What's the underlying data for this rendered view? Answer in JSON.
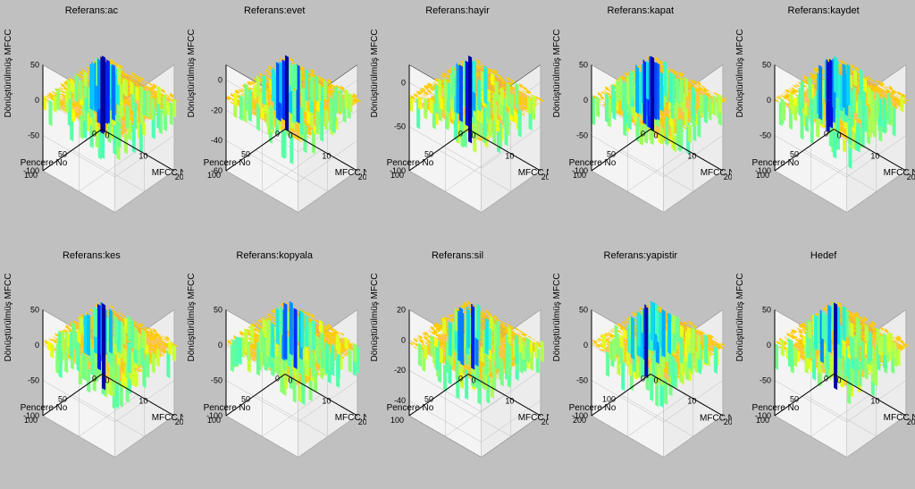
{
  "background_color": "#c0c0c0",
  "axis_line_color": "#000000",
  "axis_face_color": "#ffffff",
  "tick_font_size": 9,
  "label_font_size": 10,
  "title_font_size": 11,
  "zlabel": "Dönüştürülmüş MFCC",
  "xlabel": "MFCC No",
  "ylabel": "Pencere No",
  "x_range": [
    0,
    20
  ],
  "x_ticks": [
    0,
    10,
    20
  ],
  "y_range": [
    0,
    100
  ],
  "colormap": [
    "#0000a0",
    "#0020ff",
    "#0080ff",
    "#00d0ff",
    "#40ffc0",
    "#a0ff60",
    "#ffff00",
    "#ffc000",
    "#ff6000",
    "#e00000",
    "#800000"
  ],
  "subplots": [
    {
      "title": "Referans:ac",
      "z_ticks": [
        -100,
        -50,
        0,
        50
      ],
      "z_range": [
        -100,
        50
      ],
      "y_ticks": [
        0,
        50,
        100
      ],
      "zmin": -100,
      "zmax": 50
    },
    {
      "title": "Referans:evet",
      "z_ticks": [
        -60,
        -40,
        -20,
        0
      ],
      "z_range": [
        -60,
        10
      ],
      "y_ticks": [
        0,
        50,
        100
      ],
      "zmin": -60,
      "zmax": 10
    },
    {
      "title": "Referans:hayir",
      "z_ticks": [
        -100,
        -50,
        0
      ],
      "z_range": [
        -100,
        20
      ],
      "y_ticks": [
        0,
        50,
        100
      ],
      "zmin": -100,
      "zmax": 20
    },
    {
      "title": "Referans:kapat",
      "z_ticks": [
        -100,
        -50,
        0,
        50
      ],
      "z_range": [
        -100,
        50
      ],
      "y_ticks": [
        0,
        50,
        100
      ],
      "zmin": -100,
      "zmax": 50
    },
    {
      "title": "Referans:kaydet",
      "z_ticks": [
        -100,
        -50,
        0,
        50
      ],
      "z_range": [
        -100,
        50
      ],
      "y_ticks": [
        0,
        50,
        100
      ],
      "zmin": -100,
      "zmax": 50
    },
    {
      "title": "Referans:kes",
      "z_ticks": [
        -100,
        -50,
        0,
        50
      ],
      "z_range": [
        -100,
        50
      ],
      "y_ticks": [
        0,
        50,
        100
      ],
      "zmin": -100,
      "zmax": 50
    },
    {
      "title": "Referans:kopyala",
      "z_ticks": [
        -100,
        -50,
        0,
        50
      ],
      "z_range": [
        -100,
        50
      ],
      "y_ticks": [
        0,
        50,
        100
      ],
      "zmin": -100,
      "zmax": 50
    },
    {
      "title": "Referans:sil",
      "z_ticks": [
        -40,
        -20,
        0,
        20
      ],
      "z_range": [
        -50,
        20
      ],
      "y_ticks": [
        0,
        50,
        100
      ],
      "zmin": -50,
      "zmax": 20
    },
    {
      "title": "Referans:yapistir",
      "z_ticks": [
        -100,
        -50,
        0,
        50
      ],
      "z_range": [
        -100,
        50
      ],
      "y_ticks": [
        0,
        100,
        200
      ],
      "zmin": -100,
      "zmax": 50
    },
    {
      "title": "Hedef",
      "z_ticks": [
        -100,
        -50,
        0,
        50
      ],
      "z_range": [
        -100,
        50
      ],
      "y_ticks": [
        0,
        50,
        100
      ],
      "zmin": -100,
      "zmax": 50
    }
  ]
}
